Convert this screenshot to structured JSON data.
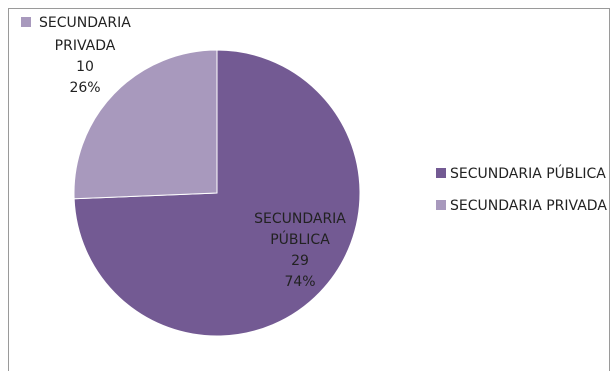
{
  "chart_data": {
    "type": "pie",
    "categories": [
      "SECUNDARIA PÚBLICA",
      "SECUNDARIA PRIVADA"
    ],
    "values": [
      29,
      10
    ],
    "percentages": [
      "74%",
      "26%"
    ],
    "colors": [
      "#735a93",
      "#a899bd"
    ],
    "legend": {
      "placement": "right",
      "entries": [
        "SECUNDARIA PÚBLICA",
        "SECUNDARIA PRIVADA"
      ]
    },
    "data_labels": [
      {
        "lines": [
          "SECUNDARIA",
          "PÚBLICA",
          "29",
          "74%"
        ]
      },
      {
        "lines": [
          "SECUNDARIA",
          "PRIVADA",
          "10",
          "26%"
        ]
      }
    ]
  }
}
